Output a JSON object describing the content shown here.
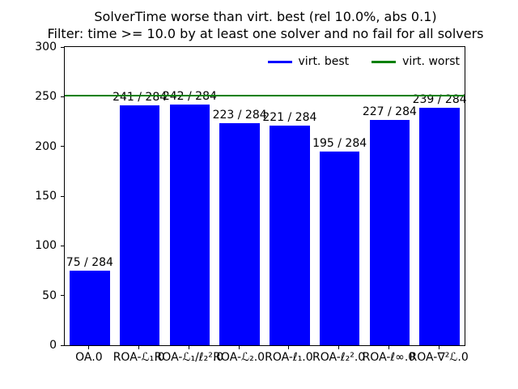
{
  "chart_data": {
    "type": "bar",
    "title": "SolverTime worse than virt. best (rel 10.0%, abs 0.1)",
    "subtitle": "Filter: time >= 10.0 by at least one solver and no fail for all solvers",
    "categories": [
      "OA.0",
      "ROA-ℒ₁.0",
      "ROA-ℒ₁/ℓ₂².0",
      "ROA-ℒ₂.0",
      "ROA-ℓ₁.0",
      "ROA-ℓ₂².0",
      "ROA-ℓ∞.0",
      "ROA-∇²ℒ.0"
    ],
    "values": [
      75,
      241,
      242,
      223,
      221,
      195,
      227,
      239
    ],
    "bar_labels": [
      "75 / 284",
      "241 / 284",
      "242 / 284",
      "223 / 284",
      "221 / 284",
      "195 / 284",
      "227 / 284",
      "239 / 284"
    ],
    "bar_color": "#0000ff",
    "hline": {
      "value": 251,
      "color": "#008000"
    },
    "legend": [
      {
        "label": "virt. best",
        "color": "#0000ff"
      },
      {
        "label": "virt. worst",
        "color": "#008000"
      }
    ],
    "legend_position": "upper right, inside plot, horizontal, no frame",
    "xlabel": "",
    "ylabel": "",
    "ylim": [
      0,
      300
    ],
    "yticks": [
      0,
      50,
      100,
      150,
      200,
      250,
      300
    ],
    "grid": false
  }
}
